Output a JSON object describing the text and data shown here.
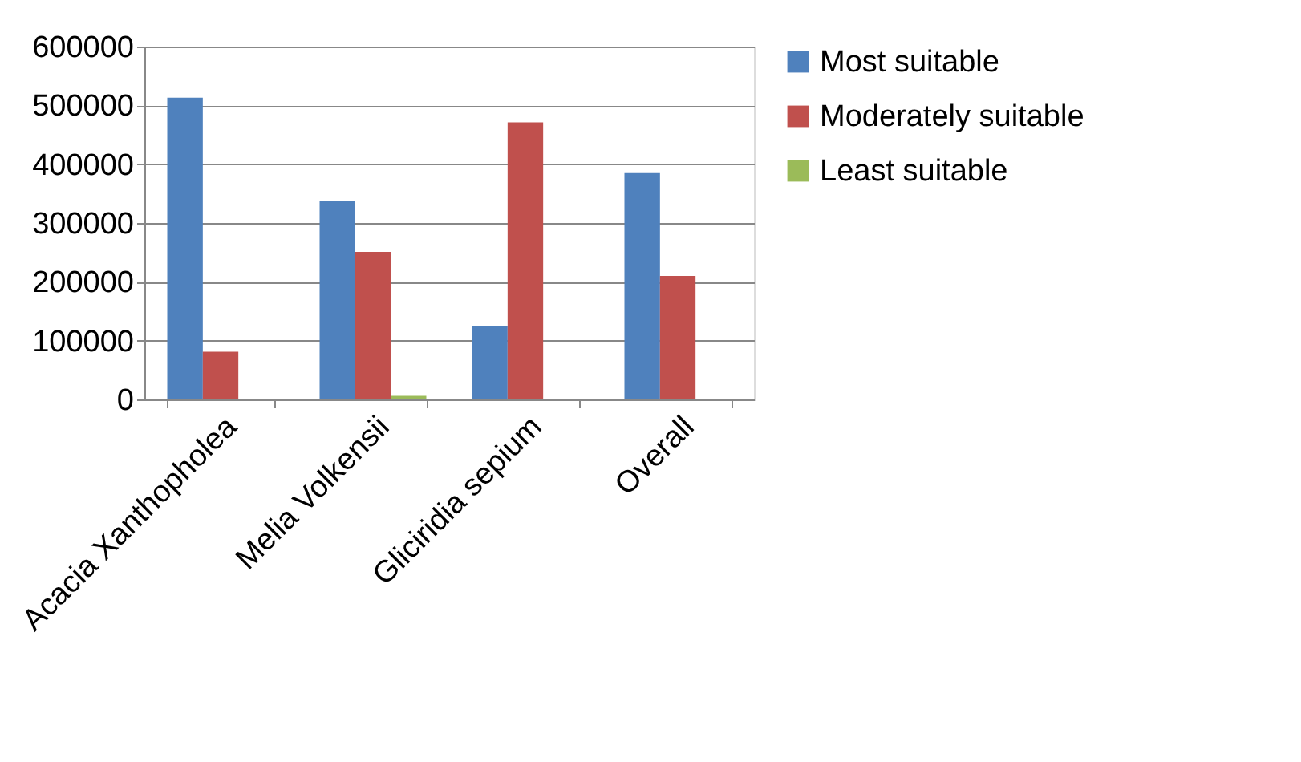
{
  "chart_data": {
    "type": "bar",
    "categories": [
      "Acacia Xanthopholea",
      "Melia Volkensii",
      "Gliciridia sepium",
      "Overall"
    ],
    "series": [
      {
        "name": "Most suitable",
        "color": "#4f81bd",
        "values": [
          513000,
          337000,
          125000,
          385000
        ]
      },
      {
        "name": "Moderately suitable",
        "color": "#c0504d",
        "values": [
          81000,
          251000,
          471000,
          210000
        ]
      },
      {
        "name": "Least suitable",
        "color": "#9bbb59",
        "values": [
          0,
          6000,
          0,
          0
        ]
      }
    ],
    "ylim": [
      0,
      600000
    ],
    "yticks": [
      0,
      100000,
      200000,
      300000,
      400000,
      500000,
      600000
    ],
    "grid": "y",
    "legend": "right"
  }
}
